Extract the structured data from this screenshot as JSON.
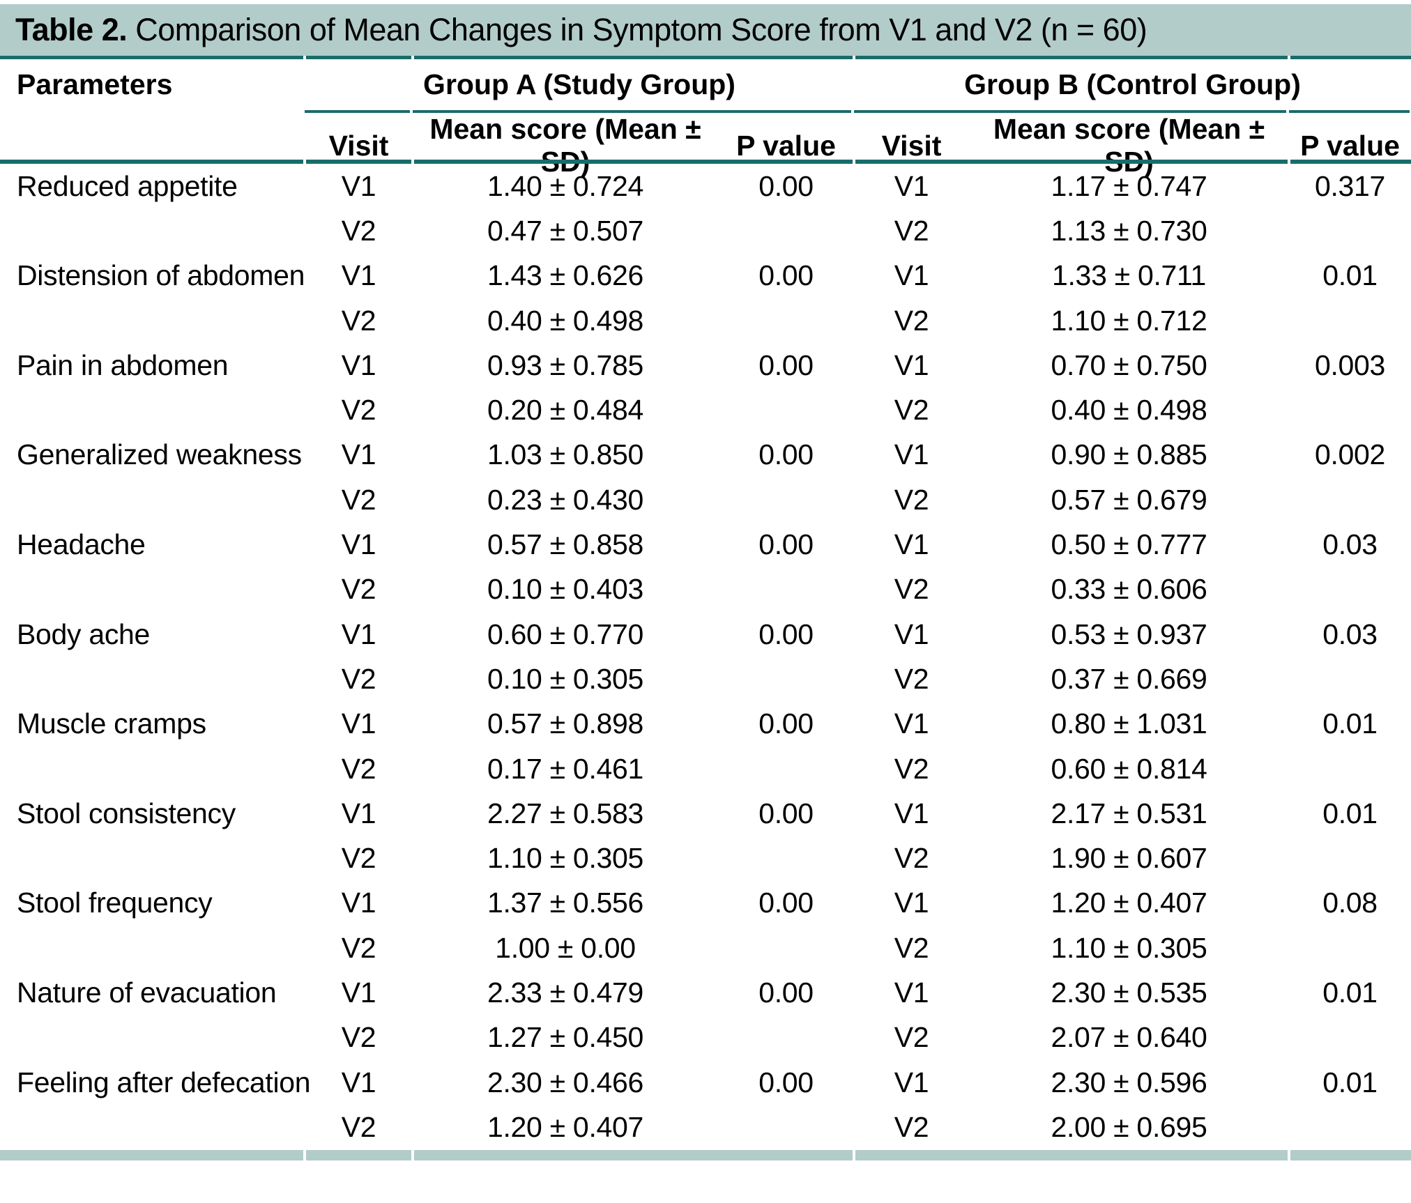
{
  "chart_data": {
    "type": "table",
    "title_label": "Table 2.",
    "title_text": "Comparison of Mean Changes in Symptom Score from V1 and V2 (n = 60)",
    "col_parameters": "Parameters",
    "group_a_header": "Group A (Study Group)",
    "group_b_header": "Group B (Control Group)",
    "subheaders": [
      "Visit",
      "Mean score (Mean ± SD)",
      "P value",
      "Visit",
      "Mean score (Mean ± SD)",
      "P value"
    ],
    "rows": [
      {
        "parameter": "Reduced appetite",
        "a": [
          [
            "V1",
            "1.40 ± 0.724"
          ],
          [
            "V2",
            "0.47 ± 0.507"
          ]
        ],
        "a_p": "0.00",
        "b": [
          [
            "V1",
            "1.17 ± 0.747"
          ],
          [
            "V2",
            "1.13 ± 0.730"
          ]
        ],
        "b_p": "0.317"
      },
      {
        "parameter": "Distension of abdomen",
        "a": [
          [
            "V1",
            "1.43 ± 0.626"
          ],
          [
            "V2",
            "0.40 ± 0.498"
          ]
        ],
        "a_p": "0.00",
        "b": [
          [
            "V1",
            "1.33 ± 0.711"
          ],
          [
            "V2",
            "1.10 ± 0.712"
          ]
        ],
        "b_p": "0.01"
      },
      {
        "parameter": "Pain in abdomen",
        "a": [
          [
            "V1",
            "0.93 ± 0.785"
          ],
          [
            "V2",
            "0.20 ± 0.484"
          ]
        ],
        "a_p": "0.00",
        "b": [
          [
            "V1",
            "0.70 ± 0.750"
          ],
          [
            "V2",
            "0.40 ± 0.498"
          ]
        ],
        "b_p": "0.003"
      },
      {
        "parameter": "Generalized weakness",
        "a": [
          [
            "V1",
            "1.03 ± 0.850"
          ],
          [
            "V2",
            "0.23 ± 0.430"
          ]
        ],
        "a_p": "0.00",
        "b": [
          [
            "V1",
            "0.90 ± 0.885"
          ],
          [
            "V2",
            "0.57 ± 0.679"
          ]
        ],
        "b_p": "0.002"
      },
      {
        "parameter": "Headache",
        "a": [
          [
            "V1",
            "0.57 ± 0.858"
          ],
          [
            "V2",
            "0.10 ± 0.403"
          ]
        ],
        "a_p": "0.00",
        "b": [
          [
            "V1",
            "0.50 ± 0.777"
          ],
          [
            "V2",
            "0.33 ± 0.606"
          ]
        ],
        "b_p": "0.03"
      },
      {
        "parameter": "Body ache",
        "a": [
          [
            "V1",
            "0.60 ± 0.770"
          ],
          [
            "V2",
            "0.10 ± 0.305"
          ]
        ],
        "a_p": "0.00",
        "b": [
          [
            "V1",
            "0.53 ± 0.937"
          ],
          [
            "V2",
            "0.37 ± 0.669"
          ]
        ],
        "b_p": "0.03"
      },
      {
        "parameter": "Muscle cramps",
        "a": [
          [
            "V1",
            "0.57 ± 0.898"
          ],
          [
            "V2",
            "0.17 ± 0.461"
          ]
        ],
        "a_p": "0.00",
        "b": [
          [
            "V1",
            "0.80 ± 1.031"
          ],
          [
            "V2",
            "0.60 ± 0.814"
          ]
        ],
        "b_p": "0.01"
      },
      {
        "parameter": "Stool consistency",
        "a": [
          [
            "V1",
            "2.27 ± 0.583"
          ],
          [
            "V2",
            "1.10 ± 0.305"
          ]
        ],
        "a_p": "0.00",
        "b": [
          [
            "V1",
            "2.17 ± 0.531"
          ],
          [
            "V2",
            "1.90 ± 0.607"
          ]
        ],
        "b_p": "0.01"
      },
      {
        "parameter": "Stool frequency",
        "a": [
          [
            "V1",
            "1.37 ± 0.556"
          ],
          [
            "V2",
            "1.00 ± 0.00"
          ]
        ],
        "a_p": "0.00",
        "b": [
          [
            "V1",
            "1.20 ± 0.407"
          ],
          [
            "V2",
            "1.10 ± 0.305"
          ]
        ],
        "b_p": "0.08"
      },
      {
        "parameter": "Nature of evacuation",
        "a": [
          [
            "V1",
            "2.33 ± 0.479"
          ],
          [
            "V2",
            "1.27 ± 0.450"
          ]
        ],
        "a_p": "0.00",
        "b": [
          [
            "V1",
            "2.30 ± 0.535"
          ],
          [
            "V2",
            "2.07 ± 0.640"
          ]
        ],
        "b_p": "0.01"
      },
      {
        "parameter": "Feeling after defecation",
        "a": [
          [
            "V1",
            "2.30 ± 0.466"
          ],
          [
            "V2",
            "1.20 ± 0.407"
          ]
        ],
        "a_p": "0.00",
        "b": [
          [
            "V1",
            "2.30 ± 0.596"
          ],
          [
            "V2",
            "2.00 ± 0.695"
          ]
        ],
        "b_p": "0.01"
      }
    ]
  },
  "colors": {
    "band_teal": "#b2ccc9",
    "rule_teal": "#1a6b6b",
    "text": "#000000",
    "background": "#ffffff"
  }
}
